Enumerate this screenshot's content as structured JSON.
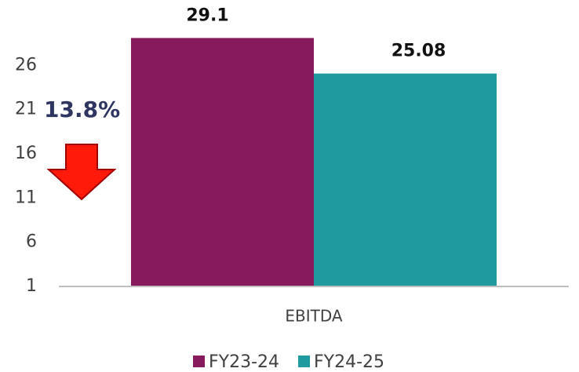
{
  "chart_data": {
    "type": "bar",
    "categories": [
      "EBITDA"
    ],
    "series": [
      {
        "name": "FY23-24",
        "color": "#861a5c",
        "values": [
          29.1
        ]
      },
      {
        "name": "FY24-25",
        "color": "#1f9ba0",
        "values": [
          25.08
        ]
      }
    ],
    "ylim": [
      1,
      31
    ],
    "yticks": [
      1,
      6,
      11,
      16,
      21,
      26
    ],
    "annotation": "13.8%"
  }
}
